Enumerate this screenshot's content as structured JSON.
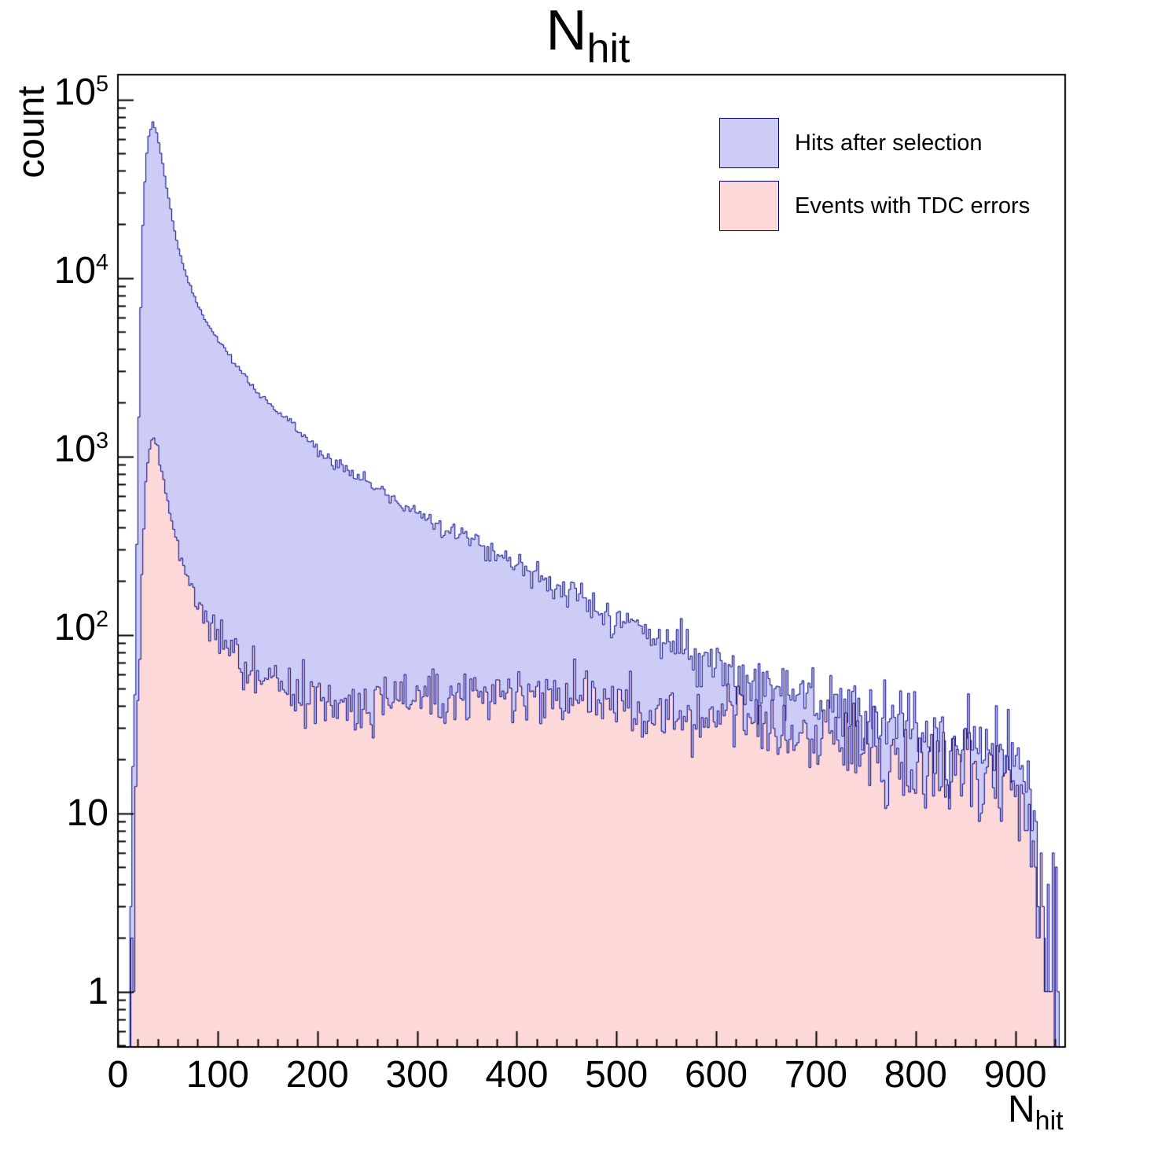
{
  "page": {
    "background": "#ffffff"
  },
  "chart_data": {
    "type": "area",
    "subtype": "log-histogram-overlay",
    "title": {
      "base": "N",
      "sub": "hit"
    },
    "ylabel": "count",
    "xlabel": {
      "base": "N",
      "sub": "hit"
    },
    "xlim": [
      0,
      950
    ],
    "ylim": [
      0.49,
      138000
    ],
    "y_scale": "log",
    "grid": false,
    "frame_color": "#000000",
    "x_minor_step": 20,
    "x_ticks": [
      {
        "value": 0,
        "label": "0"
      },
      {
        "value": 100,
        "label": "100"
      },
      {
        "value": 200,
        "label": "200"
      },
      {
        "value": 300,
        "label": "300"
      },
      {
        "value": 400,
        "label": "400"
      },
      {
        "value": 500,
        "label": "500"
      },
      {
        "value": 600,
        "label": "600"
      },
      {
        "value": 700,
        "label": "700"
      },
      {
        "value": 800,
        "label": "800"
      },
      {
        "value": 900,
        "label": "900"
      }
    ],
    "y_ticks": [
      {
        "value": 1,
        "label": "1",
        "exp": ""
      },
      {
        "value": 10,
        "label": "10",
        "exp": ""
      },
      {
        "value": 100,
        "label": "10",
        "exp": "2"
      },
      {
        "value": 1000,
        "label": "10",
        "exp": "3"
      },
      {
        "value": 10000,
        "label": "10",
        "exp": "4"
      },
      {
        "value": 100000,
        "label": "10",
        "exp": "5"
      }
    ],
    "legend": {
      "position": "top-right",
      "items": [
        {
          "label": "Hits after selection",
          "fill": "#ccccf7",
          "line": "#000080"
        },
        {
          "label": "Events with TDC errors",
          "fill": "#fcd8d8",
          "line": "#000080"
        }
      ]
    },
    "series": [
      {
        "name": "Hits after selection",
        "fill": "#ccccf7",
        "line": "#000080",
        "bin_width": 2,
        "x_range": [
          10,
          948
        ],
        "seed": 1234,
        "envelope_x": [
          10,
          13,
          16,
          19,
          22,
          25,
          28,
          31,
          35,
          39,
          44,
          50,
          58,
          68,
          80,
          95,
          115,
          140,
          170,
          200,
          240,
          280,
          320,
          360,
          400,
          450,
          500,
          550,
          600,
          650,
          700,
          750,
          800,
          850,
          900,
          910,
          916,
          922,
          928,
          935,
          948
        ],
        "envelope_y": [
          0.5,
          2,
          15,
          300,
          4000,
          20000,
          45000,
          62000,
          75000,
          65000,
          47000,
          30000,
          17000,
          10500,
          7000,
          5000,
          3400,
          2300,
          1600,
          1100,
          780,
          560,
          430,
          330,
          250,
          175,
          125,
          92,
          68,
          52,
          40,
          33,
          28,
          24,
          20,
          17,
          12,
          6,
          2,
          0.9,
          0.6
        ]
      },
      {
        "name": "Events with TDC errors",
        "fill": "#fcd8d8",
        "line": "#000080",
        "bin_width": 2,
        "x_range": [
          13,
          940
        ],
        "seed": 99,
        "envelope_x": [
          13,
          16,
          19,
          22,
          25,
          28,
          31,
          35,
          39,
          44,
          50,
          58,
          68,
          80,
          95,
          115,
          140,
          170,
          200,
          250,
          300,
          350,
          400,
          450,
          500,
          535,
          560,
          600,
          650,
          700,
          750,
          800,
          850,
          900,
          910,
          916,
          922,
          930,
          940
        ],
        "envelope_y": [
          0.5,
          2,
          12,
          80,
          300,
          700,
          1050,
          1300,
          1150,
          850,
          560,
          350,
          230,
          150,
          105,
          75,
          57,
          48,
          44,
          42,
          43,
          44,
          44,
          45,
          41,
          33,
          37,
          35,
          30,
          26,
          22,
          19,
          16,
          13,
          11,
          8,
          4,
          1.5,
          0.6
        ]
      }
    ]
  }
}
